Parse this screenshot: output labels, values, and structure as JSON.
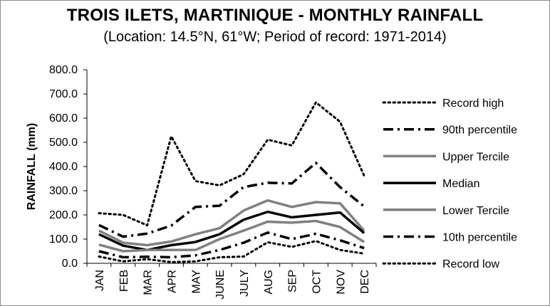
{
  "chart_data": {
    "type": "line",
    "title": "TROIS ILETS, MARTINIQUE - MONTHLY RAINFALL",
    "subtitle": "(Location: 14.5°N, 61°W; Period of record: 1971-2014)",
    "ylabel": "RAINFALL (mm)",
    "xlabel": "",
    "ylim": [
      0,
      800
    ],
    "yticks": [
      "0.0",
      "100.0",
      "200.0",
      "300.0",
      "400.0",
      "500.0",
      "600.0",
      "700.0",
      "800.0"
    ],
    "categories": [
      "JAN",
      "FEB",
      "MAR",
      "APR",
      "MAY",
      "JUNE",
      "JULY",
      "AUG",
      "SEP",
      "OCT",
      "NOV",
      "DEC"
    ],
    "legend_position": "right",
    "grid": false,
    "series": [
      {
        "name": "Record high",
        "style": "dotted",
        "color": "#000000",
        "values": [
          207,
          200,
          157,
          525,
          340,
          322,
          368,
          511,
          487,
          665,
          585,
          362
        ]
      },
      {
        "name": "90th percentile",
        "style": "dashdot",
        "color": "#000000",
        "values": [
          158,
          110,
          123,
          156,
          233,
          238,
          315,
          333,
          330,
          415,
          315,
          235
        ]
      },
      {
        "name": "Upper Tercile",
        "style": "solid",
        "color": "#808080",
        "values": [
          135,
          85,
          75,
          90,
          120,
          145,
          218,
          260,
          233,
          253,
          248,
          135
        ]
      },
      {
        "name": "Median",
        "style": "solid",
        "color": "#000000",
        "values": [
          120,
          73,
          55,
          75,
          88,
          120,
          180,
          213,
          190,
          200,
          210,
          125
        ]
      },
      {
        "name": "Lower Tercile",
        "style": "solid",
        "color": "#808080",
        "values": [
          77,
          50,
          55,
          55,
          55,
          100,
          135,
          172,
          168,
          175,
          150,
          88
        ]
      },
      {
        "name": "10th percentile",
        "style": "dashdot",
        "color": "#000000",
        "values": [
          50,
          25,
          27,
          25,
          33,
          55,
          85,
          127,
          100,
          122,
          95,
          63
        ]
      },
      {
        "name": "Record low",
        "style": "dotted",
        "color": "#000000",
        "values": [
          28,
          8,
          17,
          5,
          8,
          25,
          28,
          87,
          68,
          92,
          55,
          40
        ]
      }
    ]
  }
}
